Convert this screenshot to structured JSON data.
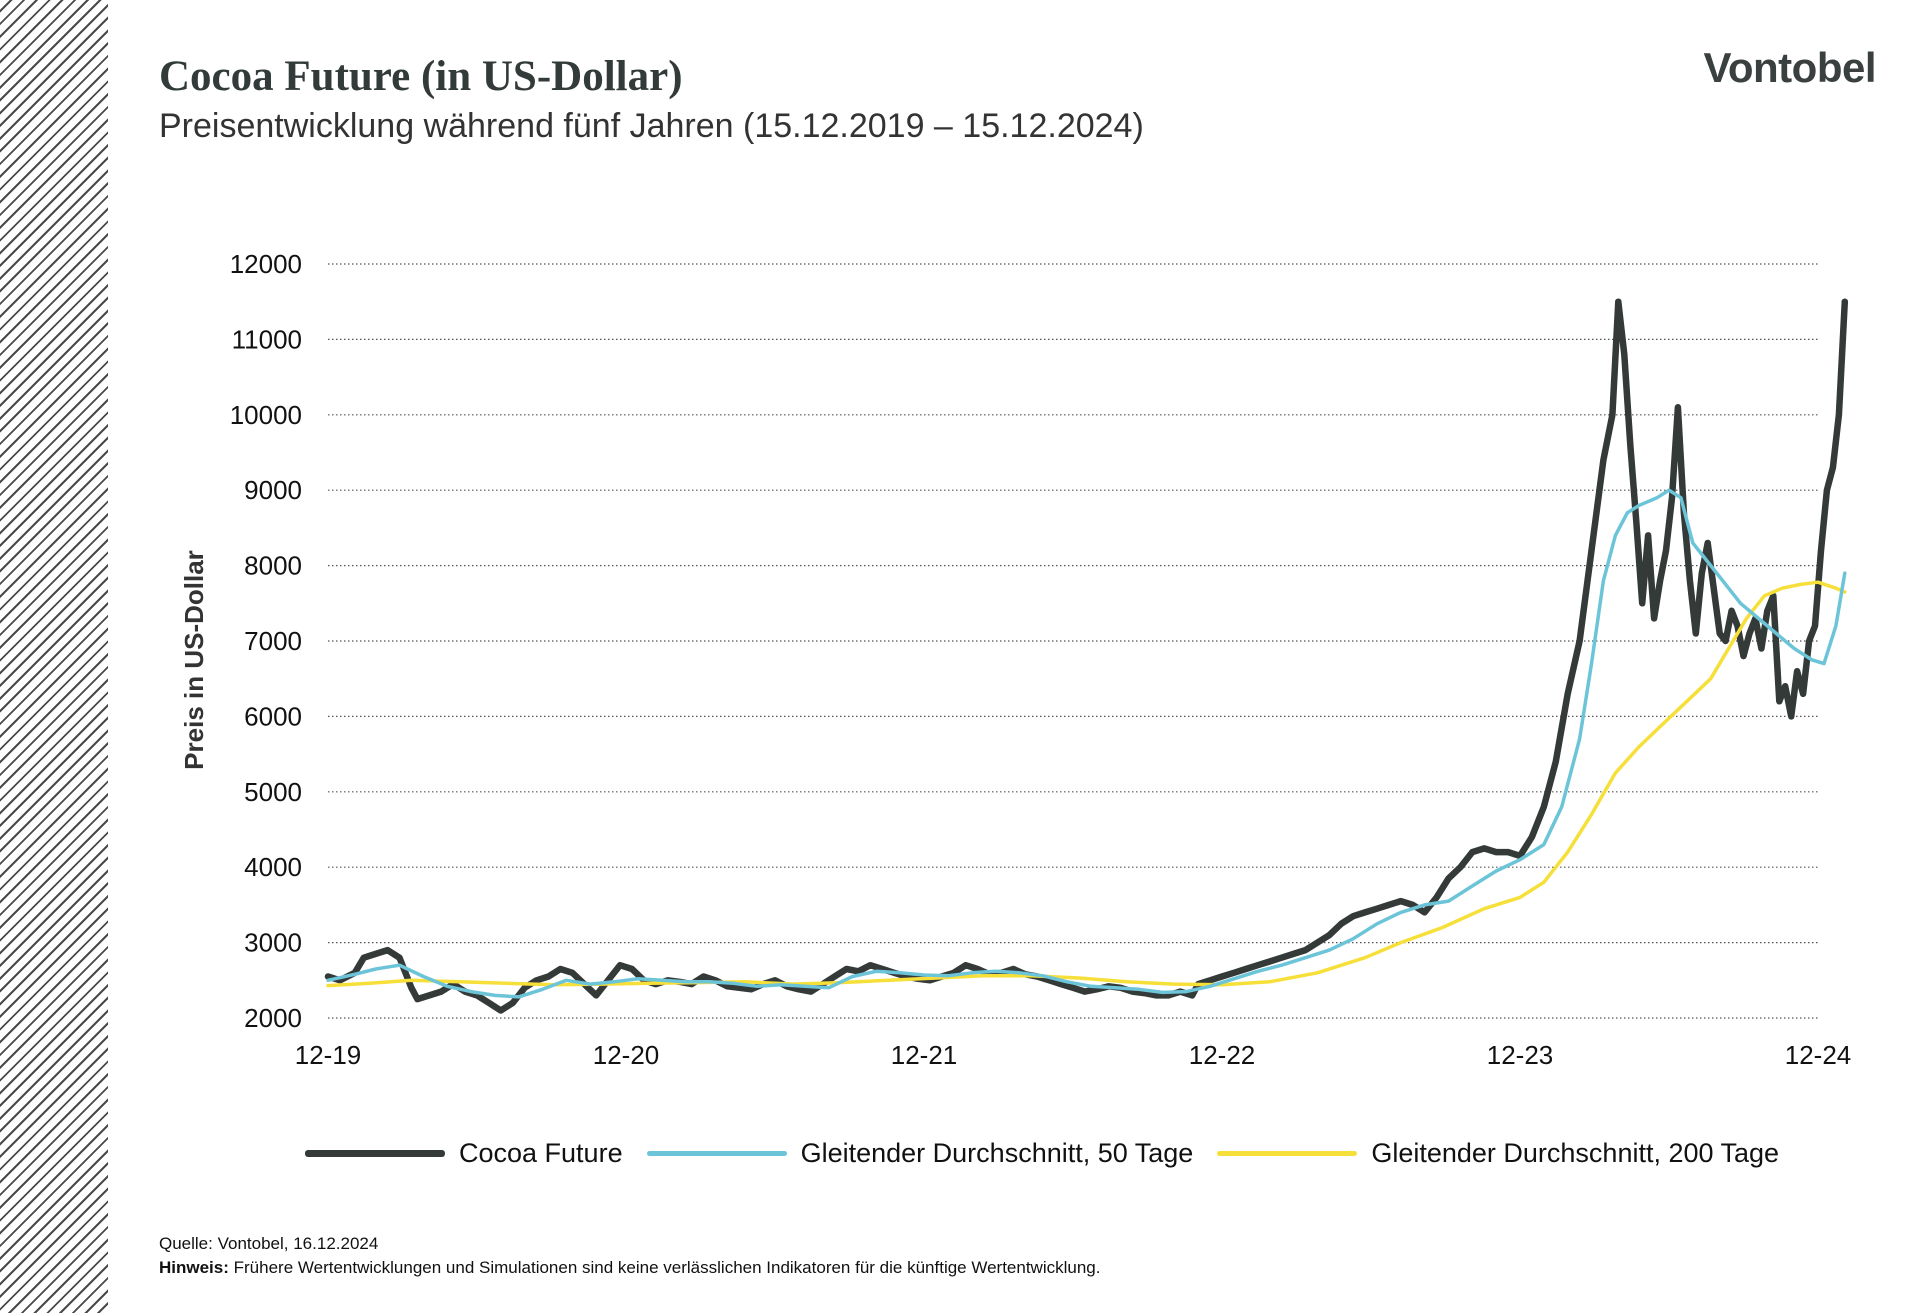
{
  "header": {
    "title": "Cocoa Future (in US-Dollar)",
    "subtitle": "Preisentwicklung während fünf Jahren (15.12.2019 – 15.12.2024)",
    "logo": "Vontobel"
  },
  "footer": {
    "source_label": "Quelle:",
    "source_text": "Vontobel,  16.12.2024",
    "note_label": "Hinweis:",
    "note_text": "Frühere Wertentwicklungen und Simulationen sind keine verlässlichen Indikatoren für die künftige Wertentwicklung."
  },
  "chart_data": {
    "type": "line",
    "ylabel": "Preis in US-Dollar",
    "ylim": [
      2000,
      12000
    ],
    "yticks": [
      2000,
      3000,
      4000,
      5000,
      6000,
      7000,
      8000,
      9000,
      10000,
      11000,
      12000
    ],
    "xlim": [
      2019.96,
      2024.96
    ],
    "xticks": [
      {
        "label": "12-19",
        "x": 2019.96
      },
      {
        "label": "12-20",
        "x": 2020.96
      },
      {
        "label": "12-21",
        "x": 2021.96
      },
      {
        "label": "12-22",
        "x": 2022.96
      },
      {
        "label": "12-23",
        "x": 2023.96
      },
      {
        "label": "12-24",
        "x": 2024.96
      }
    ],
    "grid": "horizontal-dotted",
    "legend_position": "bottom",
    "series": [
      {
        "name": "Cocoa Future",
        "color": "#333a38",
        "points": [
          [
            2019.96,
            2550
          ],
          [
            2020.0,
            2500
          ],
          [
            2020.05,
            2600
          ],
          [
            2020.08,
            2800
          ],
          [
            2020.12,
            2850
          ],
          [
            2020.16,
            2900
          ],
          [
            2020.2,
            2800
          ],
          [
            2020.24,
            2400
          ],
          [
            2020.26,
            2250
          ],
          [
            2020.3,
            2300
          ],
          [
            2020.34,
            2350
          ],
          [
            2020.38,
            2450
          ],
          [
            2020.42,
            2350
          ],
          [
            2020.46,
            2300
          ],
          [
            2020.5,
            2200
          ],
          [
            2020.54,
            2100
          ],
          [
            2020.58,
            2200
          ],
          [
            2020.62,
            2400
          ],
          [
            2020.66,
            2500
          ],
          [
            2020.7,
            2550
          ],
          [
            2020.74,
            2650
          ],
          [
            2020.78,
            2600
          ],
          [
            2020.82,
            2450
          ],
          [
            2020.86,
            2300
          ],
          [
            2020.9,
            2500
          ],
          [
            2020.94,
            2700
          ],
          [
            2020.98,
            2650
          ],
          [
            2021.02,
            2500
          ],
          [
            2021.06,
            2450
          ],
          [
            2021.1,
            2500
          ],
          [
            2021.14,
            2480
          ],
          [
            2021.18,
            2450
          ],
          [
            2021.22,
            2550
          ],
          [
            2021.26,
            2500
          ],
          [
            2021.3,
            2420
          ],
          [
            2021.34,
            2400
          ],
          [
            2021.38,
            2380
          ],
          [
            2021.42,
            2450
          ],
          [
            2021.46,
            2500
          ],
          [
            2021.5,
            2420
          ],
          [
            2021.54,
            2380
          ],
          [
            2021.58,
            2350
          ],
          [
            2021.62,
            2450
          ],
          [
            2021.66,
            2550
          ],
          [
            2021.7,
            2650
          ],
          [
            2021.74,
            2620
          ],
          [
            2021.78,
            2700
          ],
          [
            2021.82,
            2650
          ],
          [
            2021.86,
            2600
          ],
          [
            2021.9,
            2550
          ],
          [
            2021.94,
            2520
          ],
          [
            2021.98,
            2500
          ],
          [
            2022.02,
            2550
          ],
          [
            2022.06,
            2600
          ],
          [
            2022.1,
            2700
          ],
          [
            2022.14,
            2650
          ],
          [
            2022.18,
            2580
          ],
          [
            2022.22,
            2600
          ],
          [
            2022.26,
            2650
          ],
          [
            2022.3,
            2580
          ],
          [
            2022.34,
            2550
          ],
          [
            2022.38,
            2500
          ],
          [
            2022.42,
            2450
          ],
          [
            2022.46,
            2400
          ],
          [
            2022.5,
            2350
          ],
          [
            2022.54,
            2380
          ],
          [
            2022.58,
            2420
          ],
          [
            2022.62,
            2400
          ],
          [
            2022.66,
            2350
          ],
          [
            2022.7,
            2330
          ],
          [
            2022.74,
            2300
          ],
          [
            2022.78,
            2300
          ],
          [
            2022.82,
            2350
          ],
          [
            2022.86,
            2300
          ],
          [
            2022.88,
            2450
          ],
          [
            2022.92,
            2500
          ],
          [
            2022.96,
            2550
          ],
          [
            2023.0,
            2600
          ],
          [
            2023.04,
            2650
          ],
          [
            2023.08,
            2700
          ],
          [
            2023.12,
            2750
          ],
          [
            2023.16,
            2800
          ],
          [
            2023.2,
            2850
          ],
          [
            2023.24,
            2900
          ],
          [
            2023.28,
            3000
          ],
          [
            2023.32,
            3100
          ],
          [
            2023.36,
            3250
          ],
          [
            2023.4,
            3350
          ],
          [
            2023.44,
            3400
          ],
          [
            2023.48,
            3450
          ],
          [
            2023.52,
            3500
          ],
          [
            2023.56,
            3550
          ],
          [
            2023.6,
            3500
          ],
          [
            2023.64,
            3400
          ],
          [
            2023.68,
            3600
          ],
          [
            2023.72,
            3850
          ],
          [
            2023.76,
            4000
          ],
          [
            2023.8,
            4200
          ],
          [
            2023.84,
            4250
          ],
          [
            2023.88,
            4200
          ],
          [
            2023.92,
            4200
          ],
          [
            2023.96,
            4150
          ],
          [
            2024.0,
            4400
          ],
          [
            2024.04,
            4800
          ],
          [
            2024.08,
            5400
          ],
          [
            2024.12,
            6300
          ],
          [
            2024.16,
            7000
          ],
          [
            2024.2,
            8200
          ],
          [
            2024.24,
            9400
          ],
          [
            2024.27,
            10000
          ],
          [
            2024.29,
            11500
          ],
          [
            2024.31,
            10800
          ],
          [
            2024.33,
            9600
          ],
          [
            2024.35,
            8600
          ],
          [
            2024.37,
            7500
          ],
          [
            2024.39,
            8400
          ],
          [
            2024.41,
            7300
          ],
          [
            2024.43,
            7800
          ],
          [
            2024.45,
            8200
          ],
          [
            2024.47,
            8900
          ],
          [
            2024.49,
            10100
          ],
          [
            2024.51,
            8700
          ],
          [
            2024.53,
            7800
          ],
          [
            2024.55,
            7100
          ],
          [
            2024.57,
            7900
          ],
          [
            2024.59,
            8300
          ],
          [
            2024.61,
            7700
          ],
          [
            2024.63,
            7100
          ],
          [
            2024.65,
            7000
          ],
          [
            2024.67,
            7400
          ],
          [
            2024.69,
            7200
          ],
          [
            2024.71,
            6800
          ],
          [
            2024.73,
            7100
          ],
          [
            2024.75,
            7300
          ],
          [
            2024.77,
            6900
          ],
          [
            2024.79,
            7400
          ],
          [
            2024.81,
            7600
          ],
          [
            2024.83,
            6200
          ],
          [
            2024.85,
            6400
          ],
          [
            2024.87,
            6000
          ],
          [
            2024.89,
            6600
          ],
          [
            2024.91,
            6300
          ],
          [
            2024.93,
            7000
          ],
          [
            2024.95,
            7200
          ],
          [
            2024.97,
            8200
          ],
          [
            2024.99,
            9000
          ],
          [
            2025.01,
            9300
          ],
          [
            2025.03,
            10000
          ],
          [
            2025.05,
            11500
          ]
        ]
      },
      {
        "name": "Gleitender Durchschnitt, 50 Tage",
        "color": "#6cc4d8",
        "points": [
          [
            2019.96,
            2500
          ],
          [
            2020.05,
            2580
          ],
          [
            2020.12,
            2650
          ],
          [
            2020.2,
            2700
          ],
          [
            2020.28,
            2550
          ],
          [
            2020.36,
            2420
          ],
          [
            2020.44,
            2350
          ],
          [
            2020.52,
            2300
          ],
          [
            2020.6,
            2280
          ],
          [
            2020.68,
            2380
          ],
          [
            2020.76,
            2500
          ],
          [
            2020.84,
            2450
          ],
          [
            2020.92,
            2480
          ],
          [
            2021.0,
            2520
          ],
          [
            2021.08,
            2500
          ],
          [
            2021.16,
            2480
          ],
          [
            2021.24,
            2480
          ],
          [
            2021.32,
            2460
          ],
          [
            2021.4,
            2420
          ],
          [
            2021.48,
            2440
          ],
          [
            2021.56,
            2420
          ],
          [
            2021.64,
            2400
          ],
          [
            2021.72,
            2550
          ],
          [
            2021.8,
            2620
          ],
          [
            2021.88,
            2600
          ],
          [
            2021.96,
            2570
          ],
          [
            2022.04,
            2560
          ],
          [
            2022.12,
            2600
          ],
          [
            2022.2,
            2620
          ],
          [
            2022.28,
            2600
          ],
          [
            2022.36,
            2560
          ],
          [
            2022.44,
            2480
          ],
          [
            2022.52,
            2420
          ],
          [
            2022.6,
            2400
          ],
          [
            2022.68,
            2380
          ],
          [
            2022.76,
            2340
          ],
          [
            2022.84,
            2350
          ],
          [
            2022.92,
            2420
          ],
          [
            2023.0,
            2520
          ],
          [
            2023.08,
            2620
          ],
          [
            2023.16,
            2700
          ],
          [
            2023.24,
            2800
          ],
          [
            2023.32,
            2900
          ],
          [
            2023.4,
            3050
          ],
          [
            2023.48,
            3250
          ],
          [
            2023.56,
            3400
          ],
          [
            2023.64,
            3500
          ],
          [
            2023.72,
            3550
          ],
          [
            2023.8,
            3750
          ],
          [
            2023.88,
            3950
          ],
          [
            2023.96,
            4100
          ],
          [
            2024.04,
            4300
          ],
          [
            2024.1,
            4800
          ],
          [
            2024.16,
            5700
          ],
          [
            2024.2,
            6700
          ],
          [
            2024.24,
            7800
          ],
          [
            2024.28,
            8400
          ],
          [
            2024.32,
            8700
          ],
          [
            2024.36,
            8800
          ],
          [
            2024.42,
            8900
          ],
          [
            2024.46,
            9000
          ],
          [
            2024.5,
            8900
          ],
          [
            2024.54,
            8300
          ],
          [
            2024.58,
            8100
          ],
          [
            2024.62,
            7900
          ],
          [
            2024.66,
            7700
          ],
          [
            2024.7,
            7500
          ],
          [
            2024.76,
            7300
          ],
          [
            2024.82,
            7100
          ],
          [
            2024.88,
            6900
          ],
          [
            2024.94,
            6750
          ],
          [
            2024.98,
            6700
          ],
          [
            2025.02,
            7200
          ],
          [
            2025.05,
            7900
          ]
        ]
      },
      {
        "name": "Gleitender Durchschnitt, 200 Tage",
        "color": "#f7df3a",
        "points": [
          [
            2019.96,
            2430
          ],
          [
            2020.1,
            2460
          ],
          [
            2020.24,
            2500
          ],
          [
            2020.4,
            2480
          ],
          [
            2020.56,
            2460
          ],
          [
            2020.72,
            2440
          ],
          [
            2020.88,
            2450
          ],
          [
            2021.04,
            2460
          ],
          [
            2021.2,
            2470
          ],
          [
            2021.36,
            2480
          ],
          [
            2021.52,
            2450
          ],
          [
            2021.68,
            2470
          ],
          [
            2021.84,
            2500
          ],
          [
            2022.0,
            2530
          ],
          [
            2022.16,
            2560
          ],
          [
            2022.32,
            2560
          ],
          [
            2022.48,
            2530
          ],
          [
            2022.64,
            2480
          ],
          [
            2022.8,
            2450
          ],
          [
            2022.96,
            2440
          ],
          [
            2023.12,
            2480
          ],
          [
            2023.28,
            2600
          ],
          [
            2023.44,
            2800
          ],
          [
            2023.56,
            3000
          ],
          [
            2023.7,
            3200
          ],
          [
            2023.84,
            3450
          ],
          [
            2023.96,
            3600
          ],
          [
            2024.04,
            3800
          ],
          [
            2024.12,
            4200
          ],
          [
            2024.2,
            4700
          ],
          [
            2024.28,
            5250
          ],
          [
            2024.36,
            5600
          ],
          [
            2024.44,
            5900
          ],
          [
            2024.52,
            6200
          ],
          [
            2024.6,
            6500
          ],
          [
            2024.66,
            6900
          ],
          [
            2024.72,
            7300
          ],
          [
            2024.78,
            7600
          ],
          [
            2024.84,
            7700
          ],
          [
            2024.9,
            7750
          ],
          [
            2024.96,
            7780
          ],
          [
            2025.02,
            7700
          ],
          [
            2025.05,
            7650
          ]
        ]
      }
    ]
  }
}
